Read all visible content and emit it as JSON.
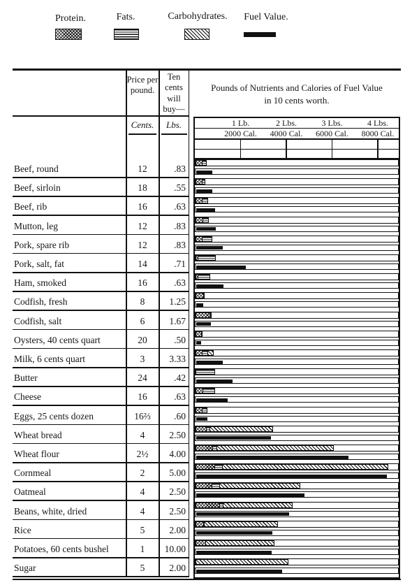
{
  "ink": "#111111",
  "paper": "#ffffff",
  "legend": {
    "items": [
      {
        "label": "Protein.",
        "pattern": "protein"
      },
      {
        "label": "Fats.",
        "pattern": "fats"
      },
      {
        "label": "Carbohydrates.",
        "pattern": "carbohydrates"
      },
      {
        "label": "Fuel Value.",
        "pattern": "fuel"
      }
    ]
  },
  "table": {
    "price_header": "Price per pound.",
    "buy_header": "Ten cents will buy—",
    "price_unit": "Cents.",
    "buy_unit": "Lbs.",
    "chart_title_line1": "Pounds of Nutrients and Calories of Fuel Value",
    "chart_title_line2": "in 10 cents worth."
  },
  "chart_data": {
    "type": "bar",
    "orientation": "horizontal",
    "title": "Pounds of Nutrients and Calories of Fuel Value in 10 cents worth.",
    "legend_position": "top",
    "grid": "ticks-only",
    "x_axis": {
      "lb_tick_labels": [
        "1 Lb.",
        "2 Lbs.",
        "3 Lbs.",
        "4 Lbs."
      ],
      "cal_tick_labels": [
        "2000 Cal.",
        "4000 Cal.",
        "6000 Cal.",
        "8000 Cal."
      ],
      "lb_ticks": [
        1,
        2,
        3,
        4
      ],
      "max_lbs": 4.5,
      "cal_per_lb": 2000
    },
    "series": [
      "Protein",
      "Fats",
      "Carbohydrates",
      "Fuel Value"
    ],
    "rows": [
      {
        "food": "Beef, round",
        "price_cents": "12",
        "ten_cents_buys_lbs": ".83",
        "protein_lbs": 0.15,
        "fats_lbs": 0.11,
        "carbs_lbs": 0,
        "fuel_cal": 700
      },
      {
        "food": "Beef, sirloin",
        "price_cents": "18",
        "ten_cents_buys_lbs": ".55",
        "protein_lbs": 0.15,
        "fats_lbs": 0.08,
        "carbs_lbs": 0,
        "fuel_cal": 700
      },
      {
        "food": "Beef, rib",
        "price_cents": "16",
        "ten_cents_buys_lbs": ".63",
        "protein_lbs": 0.15,
        "fats_lbs": 0.14,
        "carbs_lbs": 0,
        "fuel_cal": 825
      },
      {
        "food": "Mutton, leg",
        "price_cents": "12",
        "ten_cents_buys_lbs": ".83",
        "protein_lbs": 0.17,
        "fats_lbs": 0.14,
        "carbs_lbs": 0,
        "fuel_cal": 855
      },
      {
        "food": "Pork, spare rib",
        "price_cents": "12",
        "ten_cents_buys_lbs": ".83",
        "protein_lbs": 0.15,
        "fats_lbs": 0.23,
        "carbs_lbs": 0,
        "fuel_cal": 1160
      },
      {
        "food": "Pork, salt, fat",
        "price_cents": "14",
        "ten_cents_buys_lbs": ".71",
        "protein_lbs": 0.06,
        "fats_lbs": 0.4,
        "carbs_lbs": 0,
        "fuel_cal": 2170
      },
      {
        "food": "Ham, smoked",
        "price_cents": "16",
        "ten_cents_buys_lbs": ".63",
        "protein_lbs": 0.06,
        "fats_lbs": 0.27,
        "carbs_lbs": 0,
        "fuel_cal": 1190
      },
      {
        "food": "Codfish, fresh",
        "price_cents": "8",
        "ten_cents_buys_lbs": "1.25",
        "protein_lbs": 0.18,
        "fats_lbs": 0.01,
        "carbs_lbs": 0,
        "fuel_cal": 305
      },
      {
        "food": "Codfish, salt",
        "price_cents": "6",
        "ten_cents_buys_lbs": "1.67",
        "protein_lbs": 0.34,
        "fats_lbs": 0.01,
        "carbs_lbs": 0,
        "fuel_cal": 640
      },
      {
        "food": "Oysters, 40 cents quart",
        "price_cents": "20",
        "ten_cents_buys_lbs": ".50",
        "protein_lbs": 0.13,
        "fats_lbs": 0.01,
        "carbs_lbs": 0,
        "fuel_cal": 215
      },
      {
        "food": "Milk, 6 cents quart",
        "price_cents": "3",
        "ten_cents_buys_lbs": "3.33",
        "protein_lbs": 0.15,
        "fats_lbs": 0.14,
        "carbs_lbs": 0.14,
        "fuel_cal": 1160
      },
      {
        "food": "Butter",
        "price_cents": "24",
        "ten_cents_buys_lbs": ".42",
        "protein_lbs": 0,
        "fats_lbs": 0.42,
        "carbs_lbs": 0,
        "fuel_cal": 1580
      },
      {
        "food": "Cheese",
        "price_cents": "16",
        "ten_cents_buys_lbs": ".63",
        "protein_lbs": 0.17,
        "fats_lbs": 0.27,
        "carbs_lbs": 0,
        "fuel_cal": 1370
      },
      {
        "food": "Eggs, 25 cents dozen",
        "price_cents": "16⅔",
        "ten_cents_buys_lbs": ".60",
        "protein_lbs": 0.15,
        "fats_lbs": 0.12,
        "carbs_lbs": 0,
        "fuel_cal": 490
      },
      {
        "food": "Wheat bread",
        "price_cents": "4",
        "ten_cents_buys_lbs": "2.50",
        "protein_lbs": 0.24,
        "fats_lbs": 0.09,
        "carbs_lbs": 1.39,
        "fuel_cal": 3260
      },
      {
        "food": "Wheat flour",
        "price_cents": "2½",
        "ten_cents_buys_lbs": "4.00",
        "protein_lbs": 0.38,
        "fats_lbs": 0.11,
        "carbs_lbs": 2.56,
        "fuel_cal": 6660
      },
      {
        "food": "Cornmeal",
        "price_cents": "2",
        "ten_cents_buys_lbs": "5.00",
        "protein_lbs": 0.43,
        "fats_lbs": 0.18,
        "carbs_lbs": 3.63,
        "fuel_cal": 8330
      },
      {
        "food": "Oatmeal",
        "price_cents": "4",
        "ten_cents_buys_lbs": "2.50",
        "protein_lbs": 0.37,
        "fats_lbs": 0.18,
        "carbs_lbs": 1.77,
        "fuel_cal": 4730
      },
      {
        "food": "Beans, white, dried",
        "price_cents": "4",
        "ten_cents_buys_lbs": "2.50",
        "protein_lbs": 0.53,
        "fats_lbs": 0.09,
        "carbs_lbs": 1.54,
        "fuel_cal": 4060
      },
      {
        "food": "Rice",
        "price_cents": "5",
        "ten_cents_buys_lbs": "2.00",
        "protein_lbs": 0.18,
        "fats_lbs": 0.02,
        "carbs_lbs": 1.62,
        "fuel_cal": 3330
      },
      {
        "food": "Potatoes, 60 cents bushel",
        "price_cents": "1",
        "ten_cents_buys_lbs": "10.00",
        "protein_lbs": 0.23,
        "fats_lbs": 0,
        "carbs_lbs": 1.51,
        "fuel_cal": 3300
      },
      {
        "food": "Sugar",
        "price_cents": "5",
        "ten_cents_buys_lbs": "2.00",
        "protein_lbs": 0,
        "fats_lbs": 0,
        "carbs_lbs": 2.03,
        "fuel_cal": 3760
      }
    ]
  }
}
